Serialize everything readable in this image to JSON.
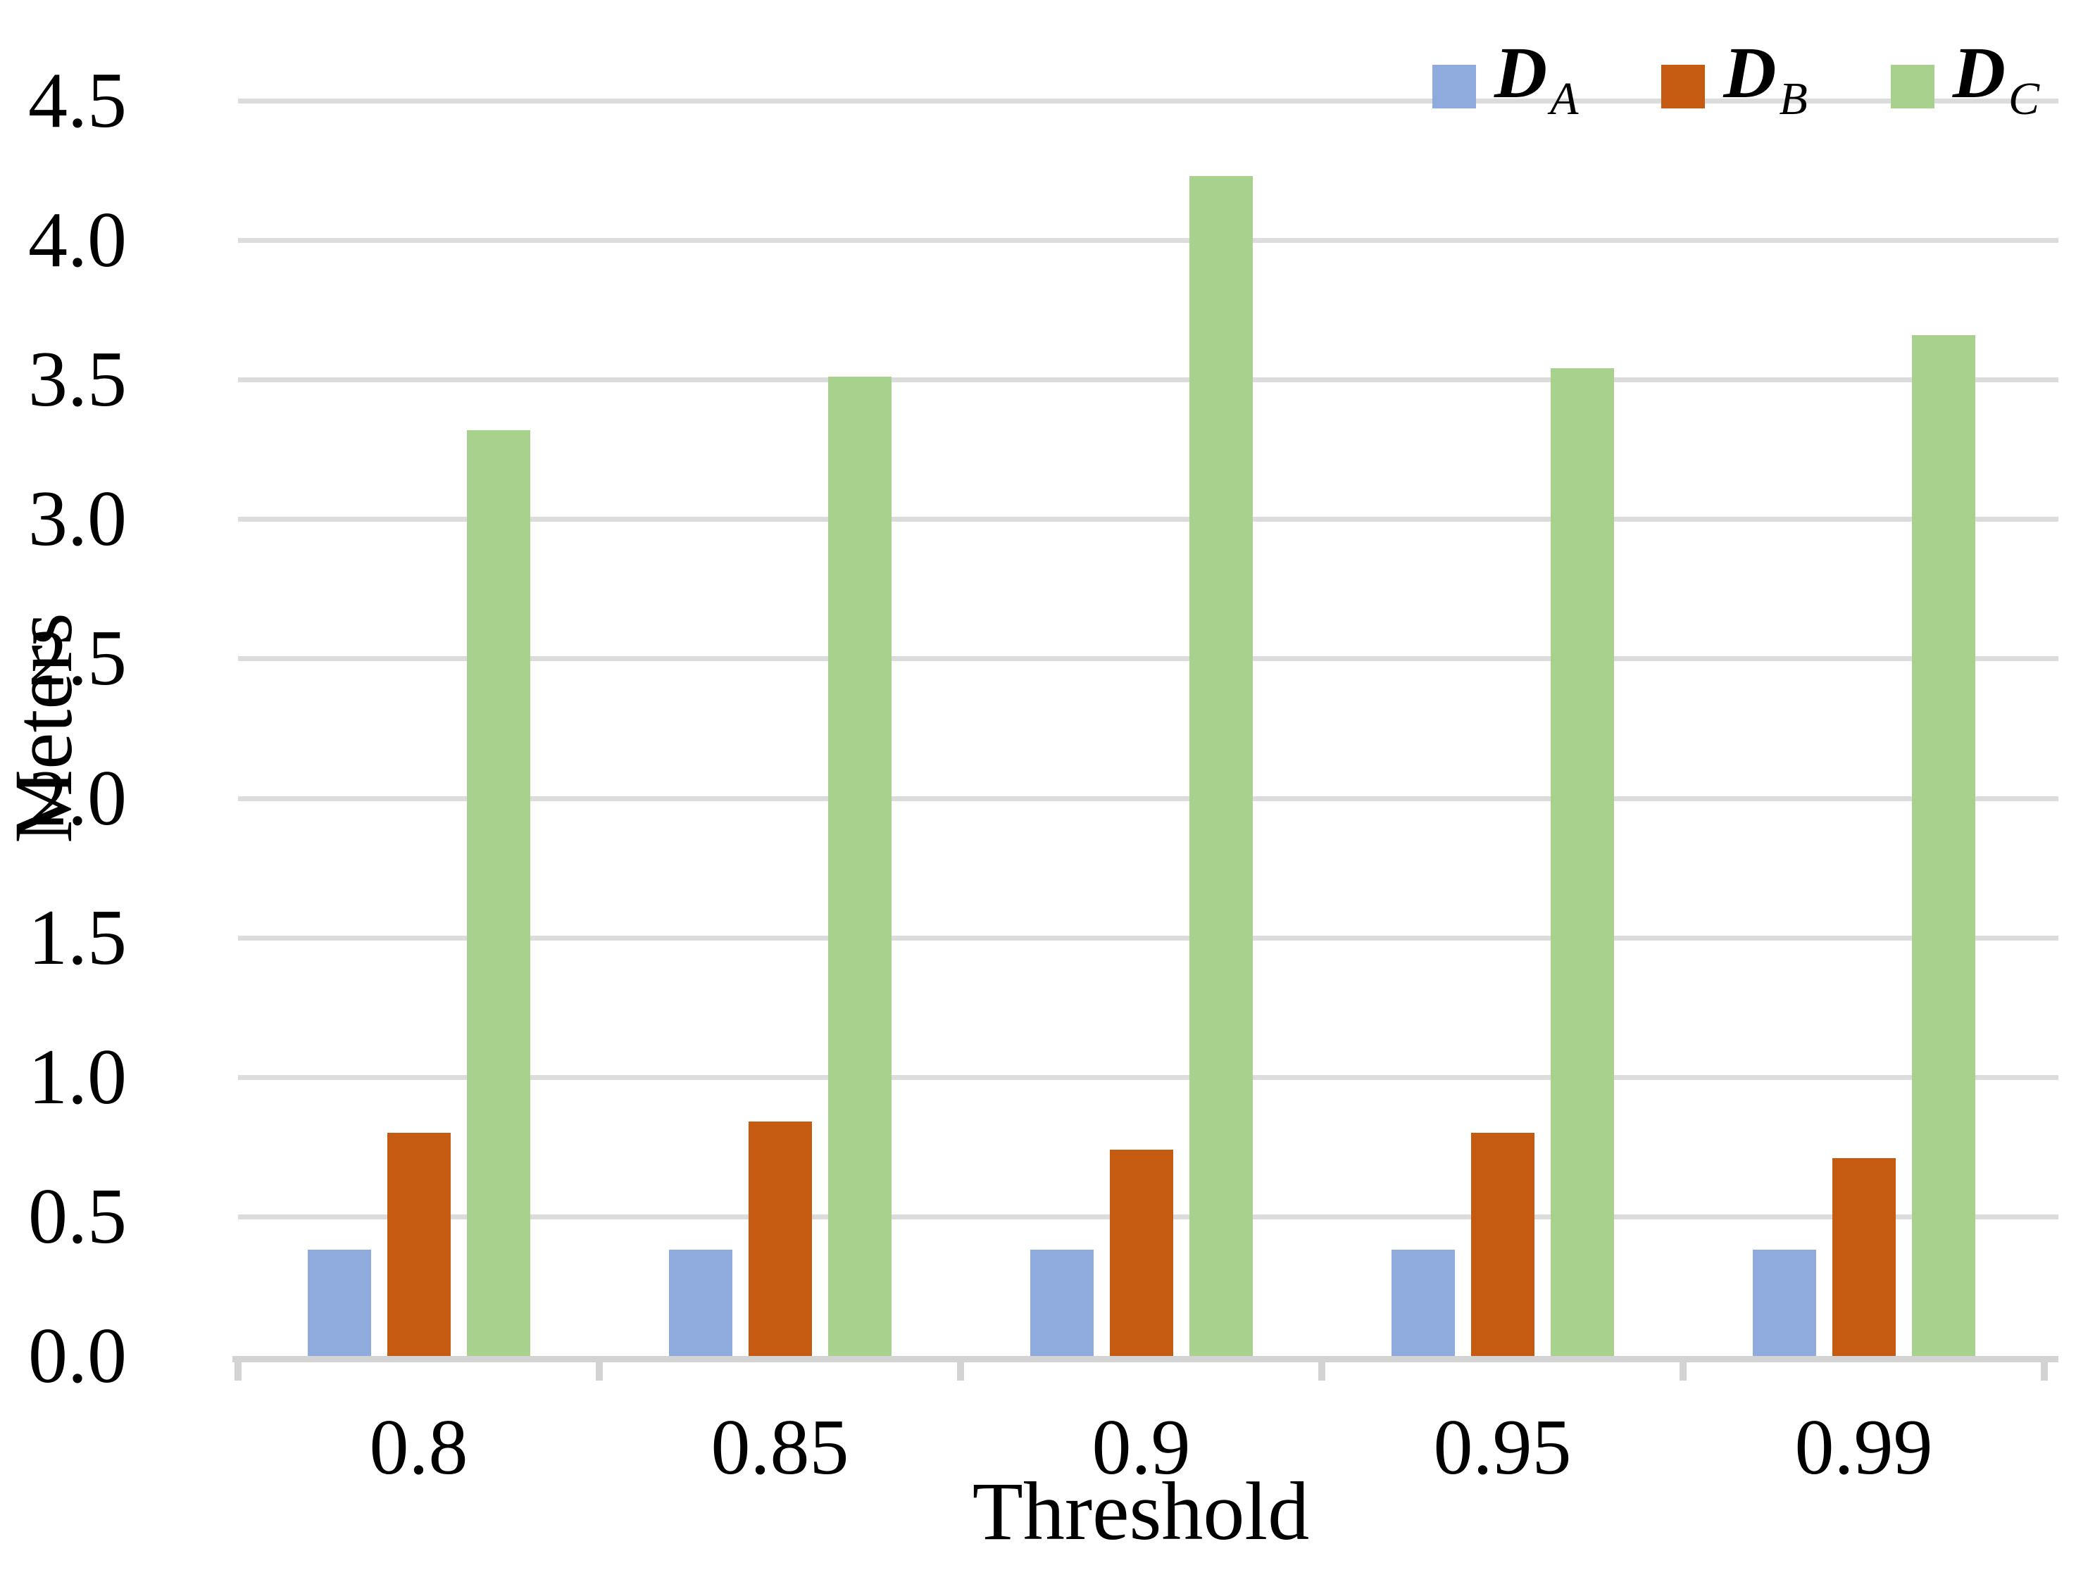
{
  "chart_data": {
    "type": "bar",
    "title": "",
    "xlabel": "Threshold",
    "ylabel": "Meters",
    "categories": [
      "0.8",
      "0.85",
      "0.9",
      "0.95",
      "0.99"
    ],
    "series": [
      {
        "name": "𝔇_A",
        "symbol_display": "D",
        "subscript": "A",
        "color": "#8FAADC",
        "values": [
          0.38,
          0.38,
          0.38,
          0.38,
          0.38
        ]
      },
      {
        "name": "𝔇_B",
        "symbol_display": "D",
        "subscript": "B",
        "color": "#C55A11",
        "values": [
          0.8,
          0.84,
          0.74,
          0.8,
          0.71
        ]
      },
      {
        "name": "𝔇_C",
        "symbol_display": "D",
        "subscript": "C",
        "color": "#A9D18E",
        "values": [
          3.32,
          3.51,
          4.23,
          3.54,
          3.66
        ]
      }
    ],
    "ylim": [
      0,
      4.5
    ],
    "ytick_step": 0.5,
    "yticks": [
      "0.0",
      "0.5",
      "1.0",
      "1.5",
      "2.0",
      "2.5",
      "3.0",
      "3.5",
      "4.0",
      "4.5"
    ],
    "grid": "horizontal",
    "legend_position": "top-right",
    "gridline_color": "#DCDCDC",
    "axis_color": "#D3D3D3",
    "text_color": "#000000"
  }
}
